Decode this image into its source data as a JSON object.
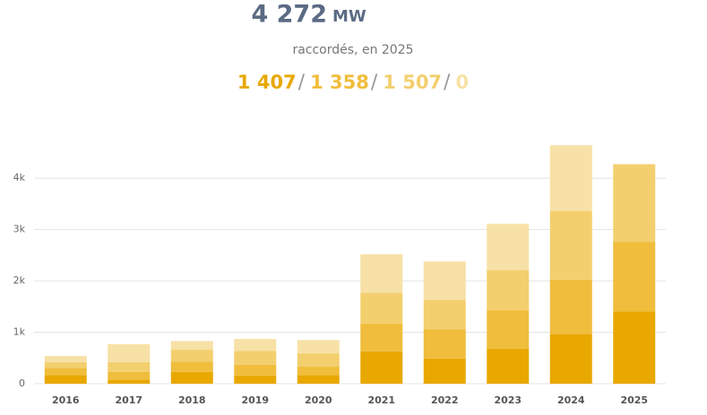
{
  "chart_data": {
    "type": "stacked_bar",
    "total": "4 272",
    "unit": "MW",
    "subtitle": "raccordés, en 2025",
    "breakdown": [
      "1 407",
      "1 358",
      "1 507",
      "0"
    ],
    "categories": [
      "2016",
      "2017",
      "2018",
      "2019",
      "2020",
      "2021",
      "2022",
      "2023",
      "2024",
      "2025"
    ],
    "series": [
      {
        "color": "#e8a800",
        "values": [
          170,
          70,
          230,
          160,
          170,
          630,
          490,
          680,
          970,
          1407
        ]
      },
      {
        "color": "#f0bd3c",
        "values": [
          140,
          160,
          200,
          210,
          160,
          540,
          570,
          750,
          1050,
          1358
        ]
      },
      {
        "color": "#f3cf6e",
        "values": [
          110,
          190,
          230,
          270,
          260,
          600,
          570,
          780,
          1340,
          1507
        ]
      },
      {
        "color": "#f7e1a6",
        "values": [
          120,
          350,
          170,
          230,
          260,
          750,
          750,
          900,
          1280,
          0
        ]
      }
    ],
    "ylim": [
      0,
      4700
    ],
    "yticks": [
      0,
      {
        "value": 1000,
        "label": "1k"
      },
      {
        "value": 2000,
        "label": "2k"
      },
      {
        "value": 3000,
        "label": "3k"
      },
      {
        "value": 4000,
        "label": "4k"
      }
    ],
    "grid": true
  }
}
